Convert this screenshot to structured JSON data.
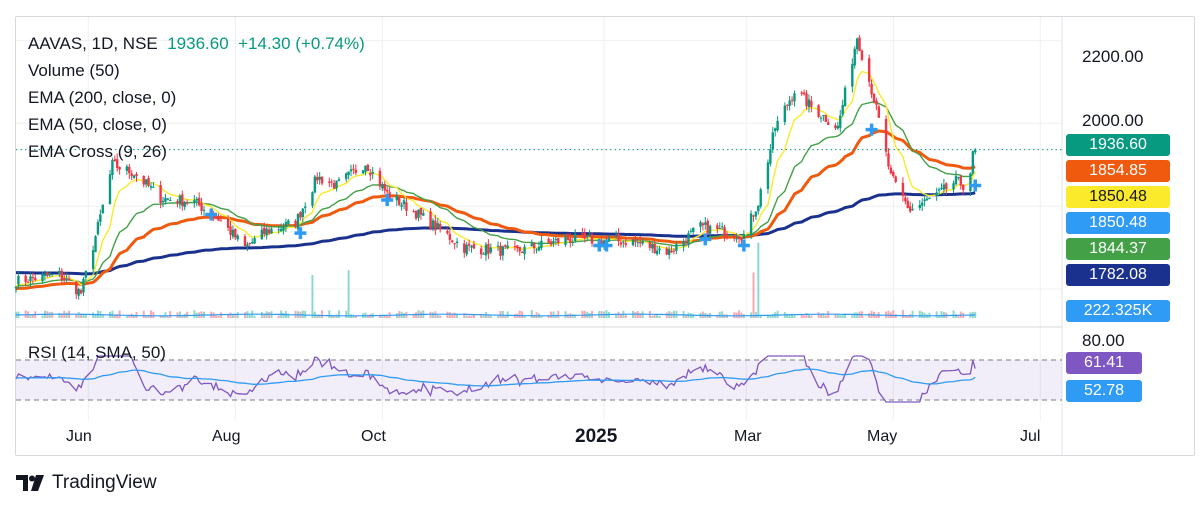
{
  "header": {
    "symbol": "AAVAS, 1D, NSE",
    "price": "1936.60",
    "change": "+14.30 (+0.74%)"
  },
  "indicators": {
    "volume": "Volume (50)",
    "ema200": "EMA (200, close, 0)",
    "ema50": "EMA (50, close, 0)",
    "ema_cross": "EMA Cross (9, 26)",
    "rsi": "RSI (14, SMA, 50)"
  },
  "price_axis": {
    "tick_2200": "2200.00",
    "tick_2000": "2000.00"
  },
  "rsi_axis": {
    "tick_80": "80.00"
  },
  "tags": [
    {
      "text": "1936.60",
      "color": "#089981"
    },
    {
      "text": "1854.85",
      "color": "#f05a0e"
    },
    {
      "text": "1850.48",
      "color": "#fbe92b",
      "textColor": "#131722"
    },
    {
      "text": "1850.48",
      "color": "#2f9bf5"
    },
    {
      "text": "1844.37",
      "color": "#43a047"
    },
    {
      "text": "1782.08",
      "color": "#1a318d"
    },
    {
      "text": "222.325K",
      "color": "#2f9bf5"
    },
    {
      "text": "61.41",
      "color": "#7e57c2"
    },
    {
      "text": "52.78",
      "color": "#2f9bf5"
    }
  ],
  "months": [
    "Jun",
    "Aug",
    "Oct",
    "2025",
    "Mar",
    "May",
    "Jul"
  ],
  "brand": "TradingView",
  "colors": {
    "up": "#089981",
    "down": "#f23645",
    "ema200": "#1a318d",
    "ema50": "#f05a0e",
    "ema9": "#fbe92b",
    "ema26": "#43a047",
    "rsi": "#7e57c2",
    "rsi_ma": "#2f9bf5",
    "volume": "#2f9bf5"
  },
  "chart_data": {
    "type": "candlestick",
    "title": "AAVAS, 1D, NSE",
    "x_range": [
      "2024-05-02",
      "2025-07-10"
    ],
    "y_range": [
      1530,
      2240
    ],
    "last_close": 1936.6,
    "change": 14.3,
    "change_pct": 0.74,
    "price_anchors": [
      [
        "2024-05-03",
        1620
      ],
      [
        "2024-05-20",
        1635
      ],
      [
        "2024-05-29",
        1590
      ],
      [
        "2024-06-05",
        1750
      ],
      [
        "2024-06-11",
        1900
      ],
      [
        "2024-06-20",
        1880
      ],
      [
        "2024-07-01",
        1820
      ],
      [
        "2024-07-15",
        1810
      ],
      [
        "2024-07-25",
        1770
      ],
      [
        "2024-08-05",
        1700
      ],
      [
        "2024-08-14",
        1740
      ],
      [
        "2024-08-26",
        1760
      ],
      [
        "2024-09-04",
        1870
      ],
      [
        "2024-09-12",
        1850
      ],
      [
        "2024-09-24",
        1905
      ],
      [
        "2024-10-03",
        1830
      ],
      [
        "2024-10-16",
        1780
      ],
      [
        "2024-11-04",
        1700
      ],
      [
        "2024-11-25",
        1690
      ],
      [
        "2024-12-16",
        1720
      ],
      [
        "2025-01-13",
        1715
      ],
      [
        "2025-01-28",
        1690
      ],
      [
        "2025-02-10",
        1750
      ],
      [
        "2025-02-28",
        1730
      ],
      [
        "2025-03-06",
        1810
      ],
      [
        "2025-03-13",
        1990
      ],
      [
        "2025-03-21",
        2080
      ],
      [
        "2025-03-28",
        2040
      ],
      [
        "2025-04-08",
        1990
      ],
      [
        "2025-04-16",
        2210
      ],
      [
        "2025-04-23",
        2060
      ],
      [
        "2025-04-30",
        1870
      ],
      [
        "2025-05-08",
        1790
      ],
      [
        "2025-05-20",
        1830
      ],
      [
        "2025-05-27",
        1860
      ],
      [
        "2025-06-01",
        1845
      ],
      [
        "2025-06-03",
        1922
      ],
      [
        "2025-06-04",
        1936.6
      ]
    ],
    "ema200_last": 1782.08,
    "ema50_last": 1854.85,
    "ema9_last": 1850.48,
    "ema26_last": 1844.37,
    "volume_last": "222.325K",
    "rsi_last": 61.41,
    "rsi_ma_last": 52.78,
    "rsi_bands": [
      30,
      70
    ]
  }
}
